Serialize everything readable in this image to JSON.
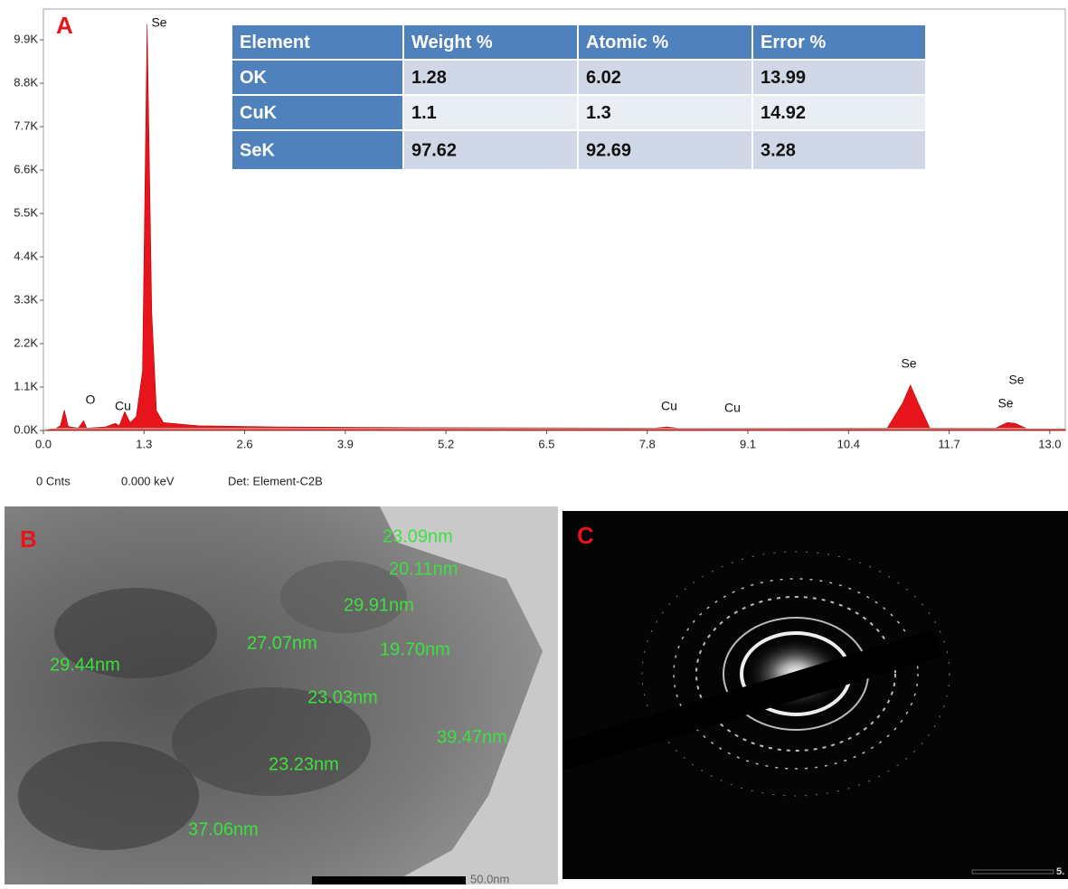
{
  "chart_data": {
    "type": "area",
    "panel_label": "A",
    "color": "#e8141c",
    "x": [
      0,
      0.15,
      0.22,
      0.27,
      0.32,
      0.45,
      0.52,
      0.56,
      0.8,
      0.93,
      0.98,
      1.05,
      1.12,
      1.2,
      1.28,
      1.34,
      1.4,
      1.46,
      1.55,
      2.0,
      3.0,
      5.0,
      7.9,
      8.05,
      8.2,
      10.9,
      11.1,
      11.2,
      11.3,
      11.45,
      12.3,
      12.45,
      12.55,
      12.7,
      13.2
    ],
    "values": [
      0,
      40,
      120,
      520,
      100,
      60,
      250,
      60,
      90,
      180,
      120,
      480,
      200,
      350,
      1500,
      10300,
      3000,
      500,
      200,
      120,
      90,
      70,
      60,
      90,
      55,
      60,
      700,
      1150,
      700,
      60,
      60,
      200,
      180,
      50,
      40
    ],
    "xlim": [
      0,
      13.2
    ],
    "ylim": [
      0,
      10680
    ],
    "xticks": [
      {
        "value": 0,
        "label": "0.0"
      },
      1.3,
      2.6,
      3.9,
      5.2,
      6.5,
      7.8,
      9.1,
      10.4,
      11.7,
      {
        "value": 13,
        "label": "13.0"
      }
    ],
    "yticks": [
      {
        "value": 0,
        "label": "0.0K"
      },
      {
        "value": 1100,
        "label": "1.1K"
      },
      {
        "value": 2200,
        "label": "2.2K"
      },
      {
        "value": 3300,
        "label": "3.3K"
      },
      {
        "value": 4400,
        "label": "4.4K"
      },
      {
        "value": 5500,
        "label": "5.5K"
      },
      {
        "value": 6600,
        "label": "6.6K"
      },
      {
        "value": 7700,
        "label": "7.7K"
      },
      {
        "value": 8800,
        "label": "8.8K"
      },
      {
        "value": 9900,
        "label": "9.9K"
      }
    ],
    "annotations": [
      "Se",
      "O",
      "Cu",
      "Cu",
      "Cu",
      "Se",
      "Se",
      "Se"
    ]
  },
  "table": {
    "header": [
      "Element",
      "Weight %",
      "Atomic %",
      "Error %"
    ],
    "rows": [
      [
        "OK",
        1.28,
        6.02,
        13.99
      ],
      [
        "CuK",
        1.1,
        1.3,
        14.92
      ],
      [
        "SeK",
        97.62,
        92.69,
        3.28
      ]
    ]
  },
  "footer": [
    "0 Cnts",
    "0.000 keV",
    "Det: Element-C2B"
  ],
  "tem": {
    "panel_label": "B",
    "labels": [
      "23.09nm",
      "20.11nm",
      "29.91nm",
      "27.07nm",
      "19.70nm",
      "29.44nm",
      "23.03nm",
      "39.47nm",
      "23.23nm",
      "37.06nm"
    ],
    "scale_bar": "50.0nm"
  },
  "saed": {
    "panel_label": "C",
    "scale_bar": "5."
  }
}
